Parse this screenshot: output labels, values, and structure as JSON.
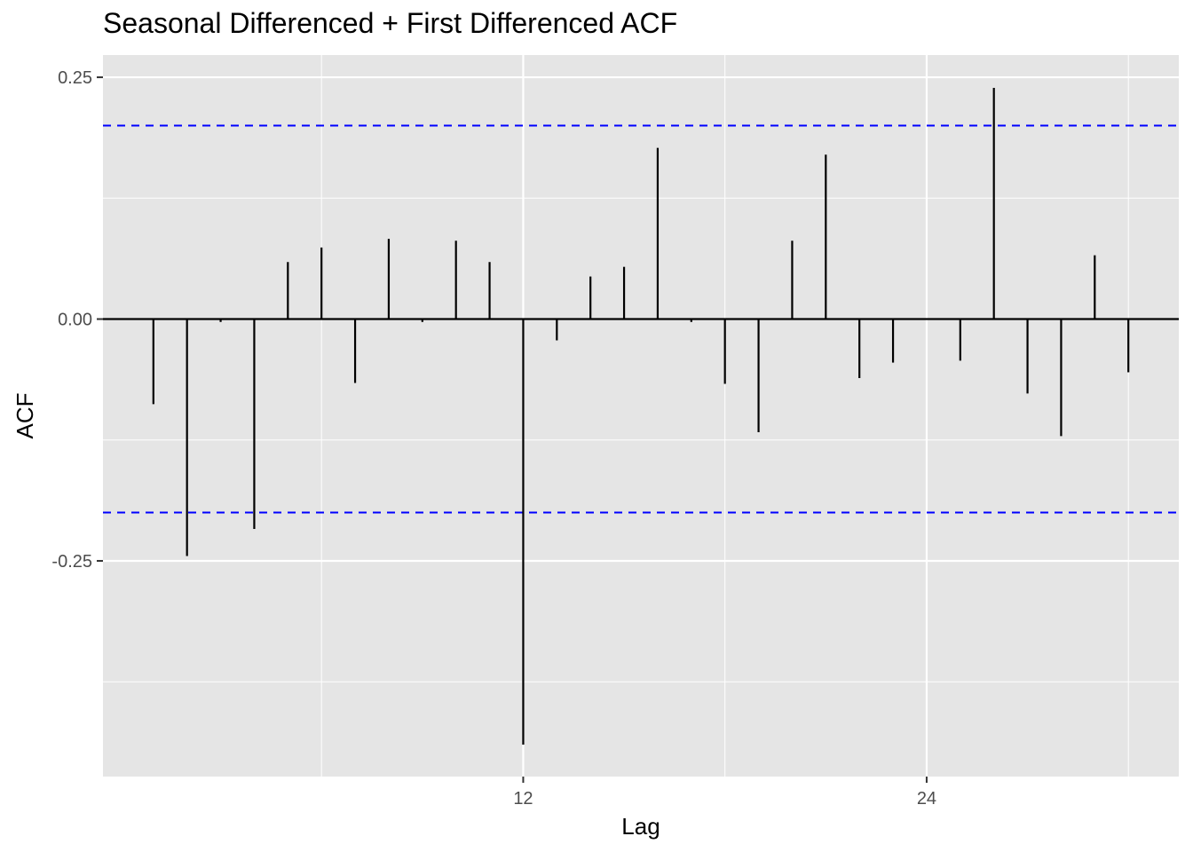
{
  "chart_data": {
    "type": "bar",
    "title": "Seasonal Differenced + First Differenced ACF",
    "xlabel": "Lag",
    "ylabel": "ACF",
    "x": [
      1,
      2,
      3,
      4,
      5,
      6,
      7,
      8,
      9,
      10,
      11,
      12,
      13,
      14,
      15,
      16,
      17,
      18,
      19,
      20,
      21,
      22,
      23,
      24,
      25,
      26,
      27,
      28,
      29,
      30
    ],
    "values": [
      -0.088,
      -0.245,
      -0.003,
      -0.217,
      0.059,
      0.074,
      -0.066,
      0.083,
      -0.003,
      0.081,
      0.059,
      -0.44,
      -0.022,
      0.044,
      0.054,
      0.177,
      -0.003,
      -0.067,
      -0.117,
      0.081,
      0.17,
      -0.061,
      -0.045,
      0.0,
      -0.043,
      0.239,
      -0.077,
      -0.121,
      0.066,
      -0.055
    ],
    "confidence_bounds": [
      0.2,
      -0.2
    ],
    "xlim": [
      -0.5,
      31.5
    ],
    "ylim": [
      -0.473,
      0.273
    ],
    "x_ticks": [
      12,
      24
    ],
    "x_tick_labels": [
      "12",
      "24"
    ],
    "y_ticks": [
      0.25,
      0.0,
      -0.25
    ],
    "y_tick_labels": [
      "0.25",
      "0.00",
      "-0.25"
    ],
    "colors": {
      "panel": "#e5e5e5",
      "grid": "#ffffff",
      "spike": "#000000",
      "bound_line": "#0000ff",
      "tick_text": "#4d4d4d"
    },
    "grid": true,
    "legend": "none"
  }
}
